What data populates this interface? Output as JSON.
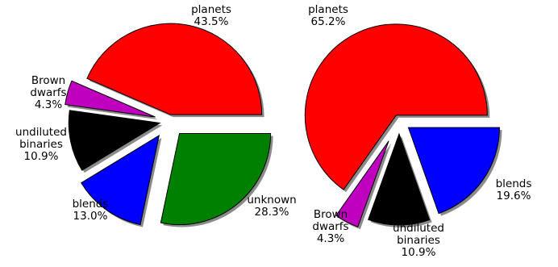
{
  "chart_data": [
    {
      "type": "pie",
      "slices": [
        {
          "label": "planets",
          "value": 43.5,
          "pct_label": "43.5%",
          "color": "#ff0000"
        },
        {
          "label": "Brown\ndwarfs",
          "value": 4.3,
          "pct_label": "4.3%",
          "color": "#bf00bf"
        },
        {
          "label": "undiluted\nbinaries",
          "value": 10.9,
          "pct_label": "10.9%",
          "color": "#000000"
        },
        {
          "label": "blends",
          "value": 13.0,
          "pct_label": "13.0%",
          "color": "#0000ff"
        },
        {
          "label": "unknown",
          "value": 28.3,
          "pct_label": "28.3%",
          "color": "#008000"
        }
      ]
    },
    {
      "type": "pie",
      "slices": [
        {
          "label": "planets",
          "value": 65.2,
          "pct_label": "65.2%",
          "color": "#ff0000"
        },
        {
          "label": "Brown\ndwarfs",
          "value": 4.3,
          "pct_label": "4.3%",
          "color": "#bf00bf"
        },
        {
          "label": "undiluted\nbinaries",
          "value": 10.9,
          "pct_label": "10.9%",
          "color": "#000000"
        },
        {
          "label": "blends",
          "value": 19.6,
          "pct_label": "19.6%",
          "color": "#0000ff"
        }
      ]
    }
  ]
}
